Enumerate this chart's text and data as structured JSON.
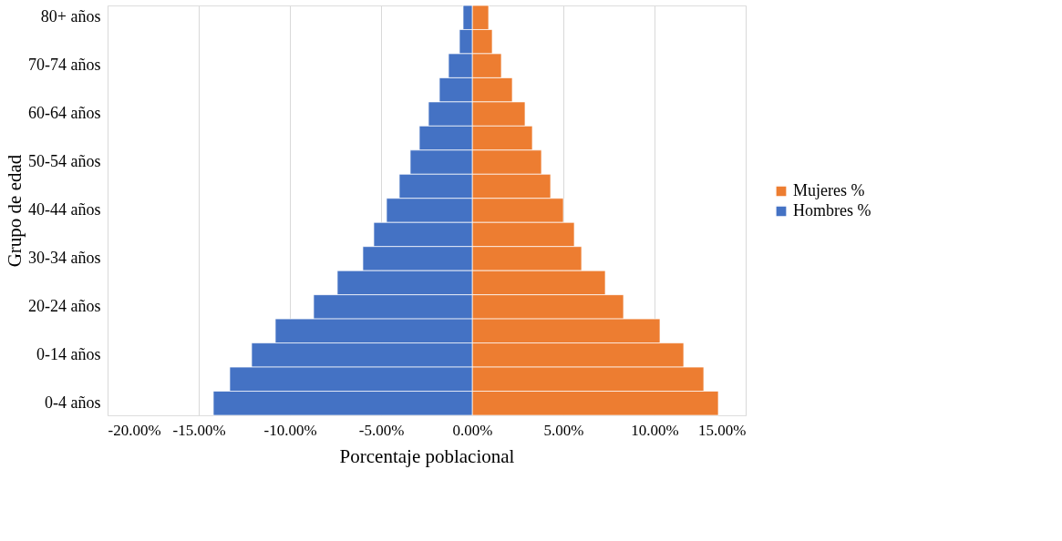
{
  "chart_data": {
    "type": "bar",
    "stacked": true,
    "orientation": "horizontal",
    "xlabel": "Porcentaje poblacional",
    "ylabel": "Grupo de edad",
    "categories": [
      "80+ años",
      null,
      "70-74 años",
      null,
      "60-64 años",
      null,
      "50-54 años",
      null,
      "40-44 años",
      null,
      "30-34 años",
      null,
      "20-24 años",
      null,
      "0-14 años",
      null,
      "0-4 años"
    ],
    "series": [
      {
        "name": "Mujeres %",
        "color": "#ed7d31",
        "values": [
          0.9,
          1.1,
          1.6,
          2.2,
          2.9,
          3.3,
          3.8,
          4.3,
          5.0,
          5.6,
          6.0,
          7.3,
          8.3,
          10.3,
          11.6,
          12.7,
          13.5
        ]
      },
      {
        "name": "Hombres %",
        "color": "#4472c4",
        "values": [
          -0.5,
          -0.7,
          -1.3,
          -1.8,
          -2.4,
          -2.9,
          -3.4,
          -4.0,
          -4.7,
          -5.4,
          -6.0,
          -7.4,
          -8.7,
          -10.8,
          -12.1,
          -13.3,
          -14.2
        ]
      }
    ],
    "xlim": [
      -20,
      15
    ],
    "xticks": [
      {
        "value": -20,
        "label": "-20.00%"
      },
      {
        "value": -15,
        "label": "-15.00%"
      },
      {
        "value": -10,
        "label": "-10.00%"
      },
      {
        "value": -5,
        "label": "-5.00%"
      },
      {
        "value": 0,
        "label": "0.00%"
      },
      {
        "value": 5,
        "label": "5.00%"
      },
      {
        "value": 10,
        "label": "10.00%"
      },
      {
        "value": 15,
        "label": "15.00%"
      }
    ],
    "grid": "x",
    "legend": "right"
  }
}
